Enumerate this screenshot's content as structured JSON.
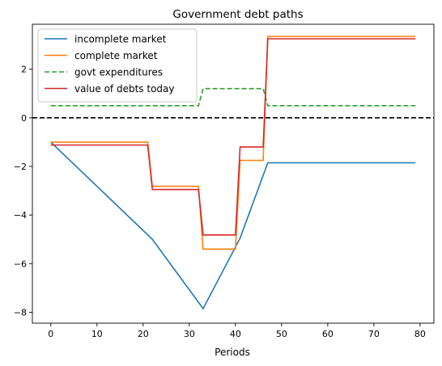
{
  "chart_data": {
    "type": "line",
    "title": "Government debt paths",
    "xlabel": "Periods",
    "ylabel": "",
    "xlim": [
      -4,
      83
    ],
    "ylim": [
      -8.45,
      3.85
    ],
    "xticks": [
      0,
      10,
      20,
      30,
      40,
      50,
      60,
      70,
      80
    ],
    "yticks": [
      -8,
      -6,
      -4,
      -2,
      0,
      2
    ],
    "legend_position": "top-left",
    "grid": false,
    "reference_line": {
      "y": 0,
      "style": "dashed",
      "color": "#000000"
    },
    "series": [
      {
        "name": "incomplete market",
        "color": "#1f77b4",
        "style": "solid",
        "x": [
          0,
          22,
          33,
          41,
          47,
          79
        ],
        "y": [
          -1.0,
          -5.0,
          -7.85,
          -4.95,
          -1.85,
          -1.85
        ]
      },
      {
        "name": "complete market",
        "color": "#ff7f0e",
        "style": "solid",
        "x": [
          0,
          21,
          22,
          32,
          33,
          40,
          41,
          46,
          47,
          79
        ],
        "y": [
          -1.0,
          -1.0,
          -2.82,
          -2.82,
          -5.4,
          -5.4,
          -1.75,
          -1.75,
          3.35,
          3.35
        ]
      },
      {
        "name": "govt expenditures",
        "color": "#2ca02c",
        "style": "dashed",
        "x": [
          0,
          32,
          33,
          46,
          47,
          79
        ],
        "y": [
          0.5,
          0.5,
          1.2,
          1.2,
          0.5,
          0.5
        ]
      },
      {
        "name": "value of debts today",
        "color": "#d62728",
        "style": "solid",
        "x": [
          0,
          21,
          22,
          32,
          33,
          40,
          41,
          46,
          47,
          79
        ],
        "y": [
          -1.12,
          -1.12,
          -2.95,
          -2.95,
          -4.82,
          -4.82,
          -1.2,
          -1.2,
          3.25,
          3.25
        ]
      }
    ]
  }
}
